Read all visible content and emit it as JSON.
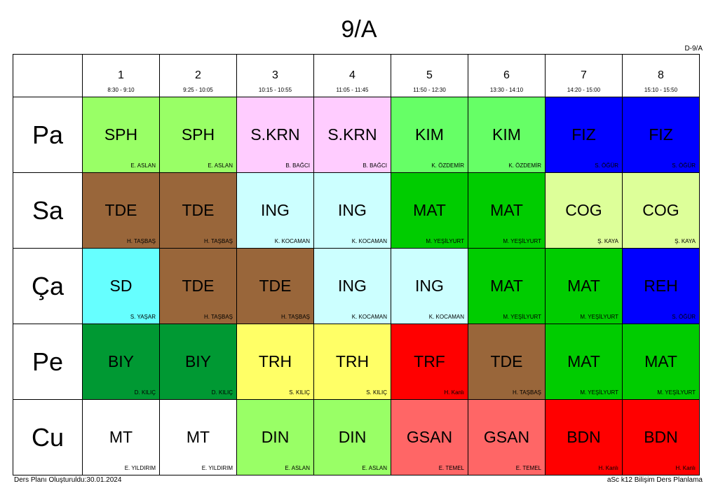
{
  "title": "9/A",
  "class_code": "D-9/A",
  "periods": [
    {
      "num": "1",
      "time": "8:30 - 9:10"
    },
    {
      "num": "2",
      "time": "9:25 - 10:05"
    },
    {
      "num": "3",
      "time": "10:15 - 10:55"
    },
    {
      "num": "4",
      "time": "11:05 - 11:45"
    },
    {
      "num": "5",
      "time": "11:50 - 12:30"
    },
    {
      "num": "6",
      "time": "13:30 - 14:10"
    },
    {
      "num": "7",
      "time": "14:20 - 15:00"
    },
    {
      "num": "8",
      "time": "15:10 - 15:50"
    }
  ],
  "days": [
    {
      "name": "Pa",
      "cells": [
        {
          "subject": "SPH",
          "teacher": "E. ASLAN",
          "color": "#99ff66"
        },
        {
          "subject": "SPH",
          "teacher": "E. ASLAN",
          "color": "#99ff66"
        },
        {
          "subject": "S.KRN",
          "teacher": "B. BAĞCI",
          "color": "#ffccff"
        },
        {
          "subject": "S.KRN",
          "teacher": "B. BAĞCI",
          "color": "#ffccff"
        },
        {
          "subject": "KIM",
          "teacher": "K. ÖZDEMİR",
          "color": "#66ff66"
        },
        {
          "subject": "KIM",
          "teacher": "K. ÖZDEMİR",
          "color": "#66ff66"
        },
        {
          "subject": "FIZ",
          "teacher": "S. ÖĞÜR",
          "color": "#0000ff"
        },
        {
          "subject": "FIZ",
          "teacher": "S. ÖĞÜR",
          "color": "#0000ff"
        }
      ]
    },
    {
      "name": "Sa",
      "cells": [
        {
          "subject": "TDE",
          "teacher": "H. TAŞBAŞ",
          "color": "#99663a"
        },
        {
          "subject": "TDE",
          "teacher": "H. TAŞBAŞ",
          "color": "#99663a"
        },
        {
          "subject": "ING",
          "teacher": "K. KOCAMAN",
          "color": "#ccffff"
        },
        {
          "subject": "ING",
          "teacher": "K. KOCAMAN",
          "color": "#ccffff"
        },
        {
          "subject": "MAT",
          "teacher": "M. YEŞİLYURT",
          "color": "#00cc00"
        },
        {
          "subject": "MAT",
          "teacher": "M. YEŞİLYURT",
          "color": "#00cc00"
        },
        {
          "subject": "COG",
          "teacher": "Ş. KAYA",
          "color": "#ddff99"
        },
        {
          "subject": "COG",
          "teacher": "Ş. KAYA",
          "color": "#ddff99"
        }
      ]
    },
    {
      "name": "Ça",
      "cells": [
        {
          "subject": "SD",
          "teacher": "S. YAŞAR",
          "color": "#66ffff"
        },
        {
          "subject": "TDE",
          "teacher": "H. TAŞBAŞ",
          "color": "#99663a"
        },
        {
          "subject": "TDE",
          "teacher": "H. TAŞBAŞ",
          "color": "#99663a"
        },
        {
          "subject": "ING",
          "teacher": "K. KOCAMAN",
          "color": "#ccffff"
        },
        {
          "subject": "ING",
          "teacher": "K. KOCAMAN",
          "color": "#ccffff"
        },
        {
          "subject": "MAT",
          "teacher": "M. YEŞİLYURT",
          "color": "#00cc00"
        },
        {
          "subject": "MAT",
          "teacher": "M. YEŞİLYURT",
          "color": "#00cc00"
        },
        {
          "subject": "REH",
          "teacher": "S. ÖĞÜR",
          "color": "#0000ff"
        }
      ]
    },
    {
      "name": "Pe",
      "cells": [
        {
          "subject": "BIY",
          "teacher": "D. KILIÇ",
          "color": "#009933"
        },
        {
          "subject": "BIY",
          "teacher": "D. KILIÇ",
          "color": "#009933"
        },
        {
          "subject": "TRH",
          "teacher": "S. KILIÇ",
          "color": "#ffff66"
        },
        {
          "subject": "TRH",
          "teacher": "S. KILIÇ",
          "color": "#ffff66"
        },
        {
          "subject": "TRF",
          "teacher": "H. Kanlı",
          "color": "#ff0000"
        },
        {
          "subject": "TDE",
          "teacher": "H. TAŞBAŞ",
          "color": "#99663a"
        },
        {
          "subject": "MAT",
          "teacher": "M. YEŞİLYURT",
          "color": "#00cc00"
        },
        {
          "subject": "MAT",
          "teacher": "M. YEŞİLYURT",
          "color": "#00cc00"
        }
      ]
    },
    {
      "name": "Cu",
      "cells": [
        {
          "subject": "MT",
          "teacher": "E. YILDIRIM",
          "color": "#ffffff"
        },
        {
          "subject": "MT",
          "teacher": "E. YILDIRIM",
          "color": "#ffffff"
        },
        {
          "subject": "DIN",
          "teacher": "E. ASLAN",
          "color": "#99ff66"
        },
        {
          "subject": "DIN",
          "teacher": "E. ASLAN",
          "color": "#99ff66"
        },
        {
          "subject": "GSAN",
          "teacher": "E. TEMEL",
          "color": "#ff6666"
        },
        {
          "subject": "GSAN",
          "teacher": "E. TEMEL",
          "color": "#ff6666"
        },
        {
          "subject": "BDN",
          "teacher": "H. Kanlı",
          "color": "#ff0000"
        },
        {
          "subject": "BDN",
          "teacher": "H. Kanlı",
          "color": "#ff0000"
        }
      ]
    }
  ],
  "footer_left": "Ders Planı Oluşturuldu:30.01.2024",
  "footer_right": "aSc k12 Bilişim Ders Planlama"
}
